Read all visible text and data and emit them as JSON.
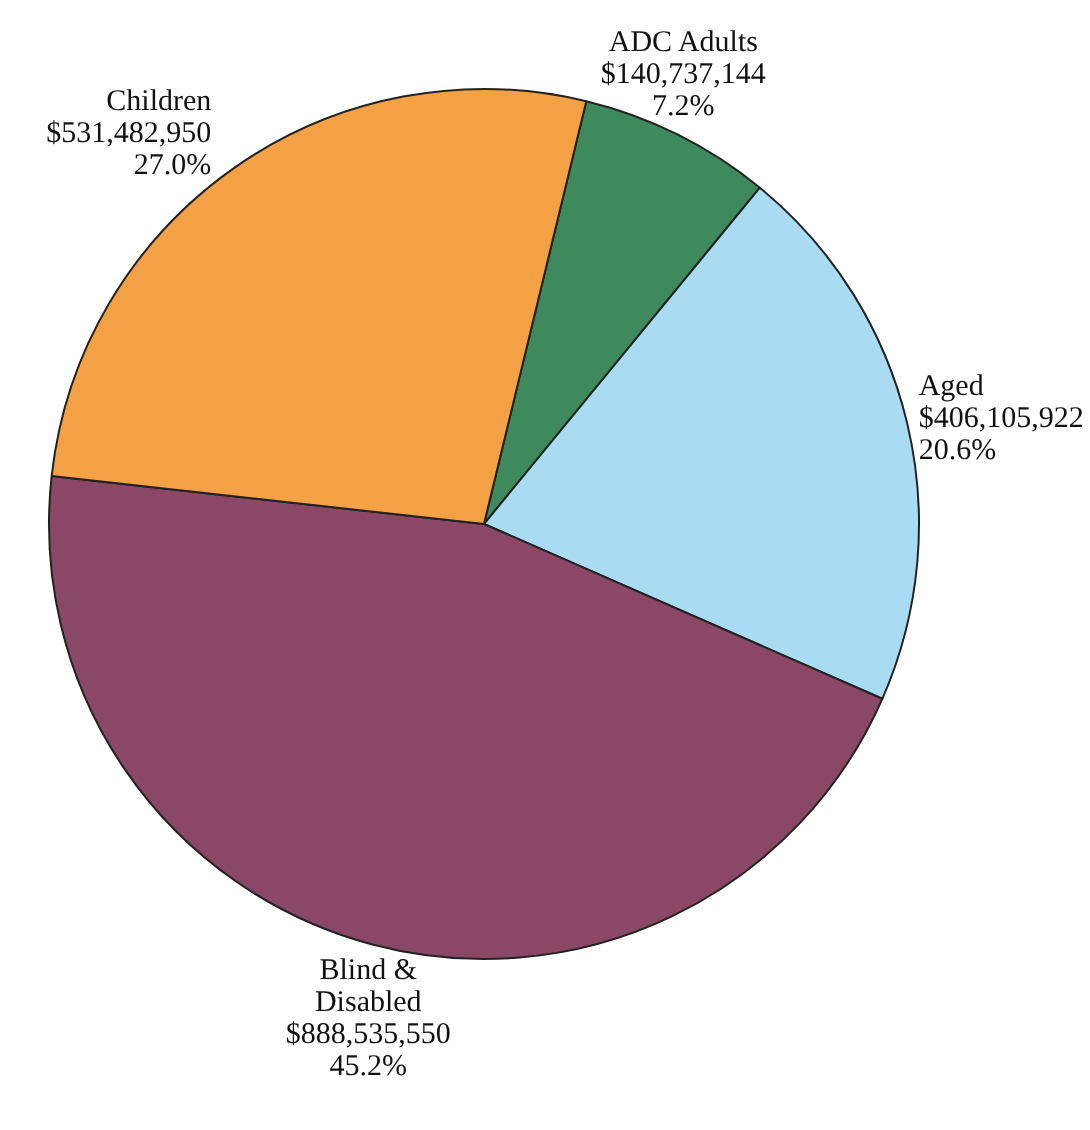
{
  "chart_data": {
    "type": "pie",
    "categories": [
      "ADC Adults",
      "Aged",
      "Blind & Disabled",
      "Children"
    ],
    "values": [
      140737144,
      406105922,
      888535550,
      531482950
    ],
    "colors": [
      "#3f8a5c",
      "#a9dcf2",
      "#8a4866",
      "#f4a045"
    ],
    "value_labels": [
      "$140,737,144\n7.2%",
      "$406,105,922\n20.6%",
      "$888,535,550\n45.2%",
      "$531,482,950\n27.0%"
    ],
    "legend": false
  }
}
